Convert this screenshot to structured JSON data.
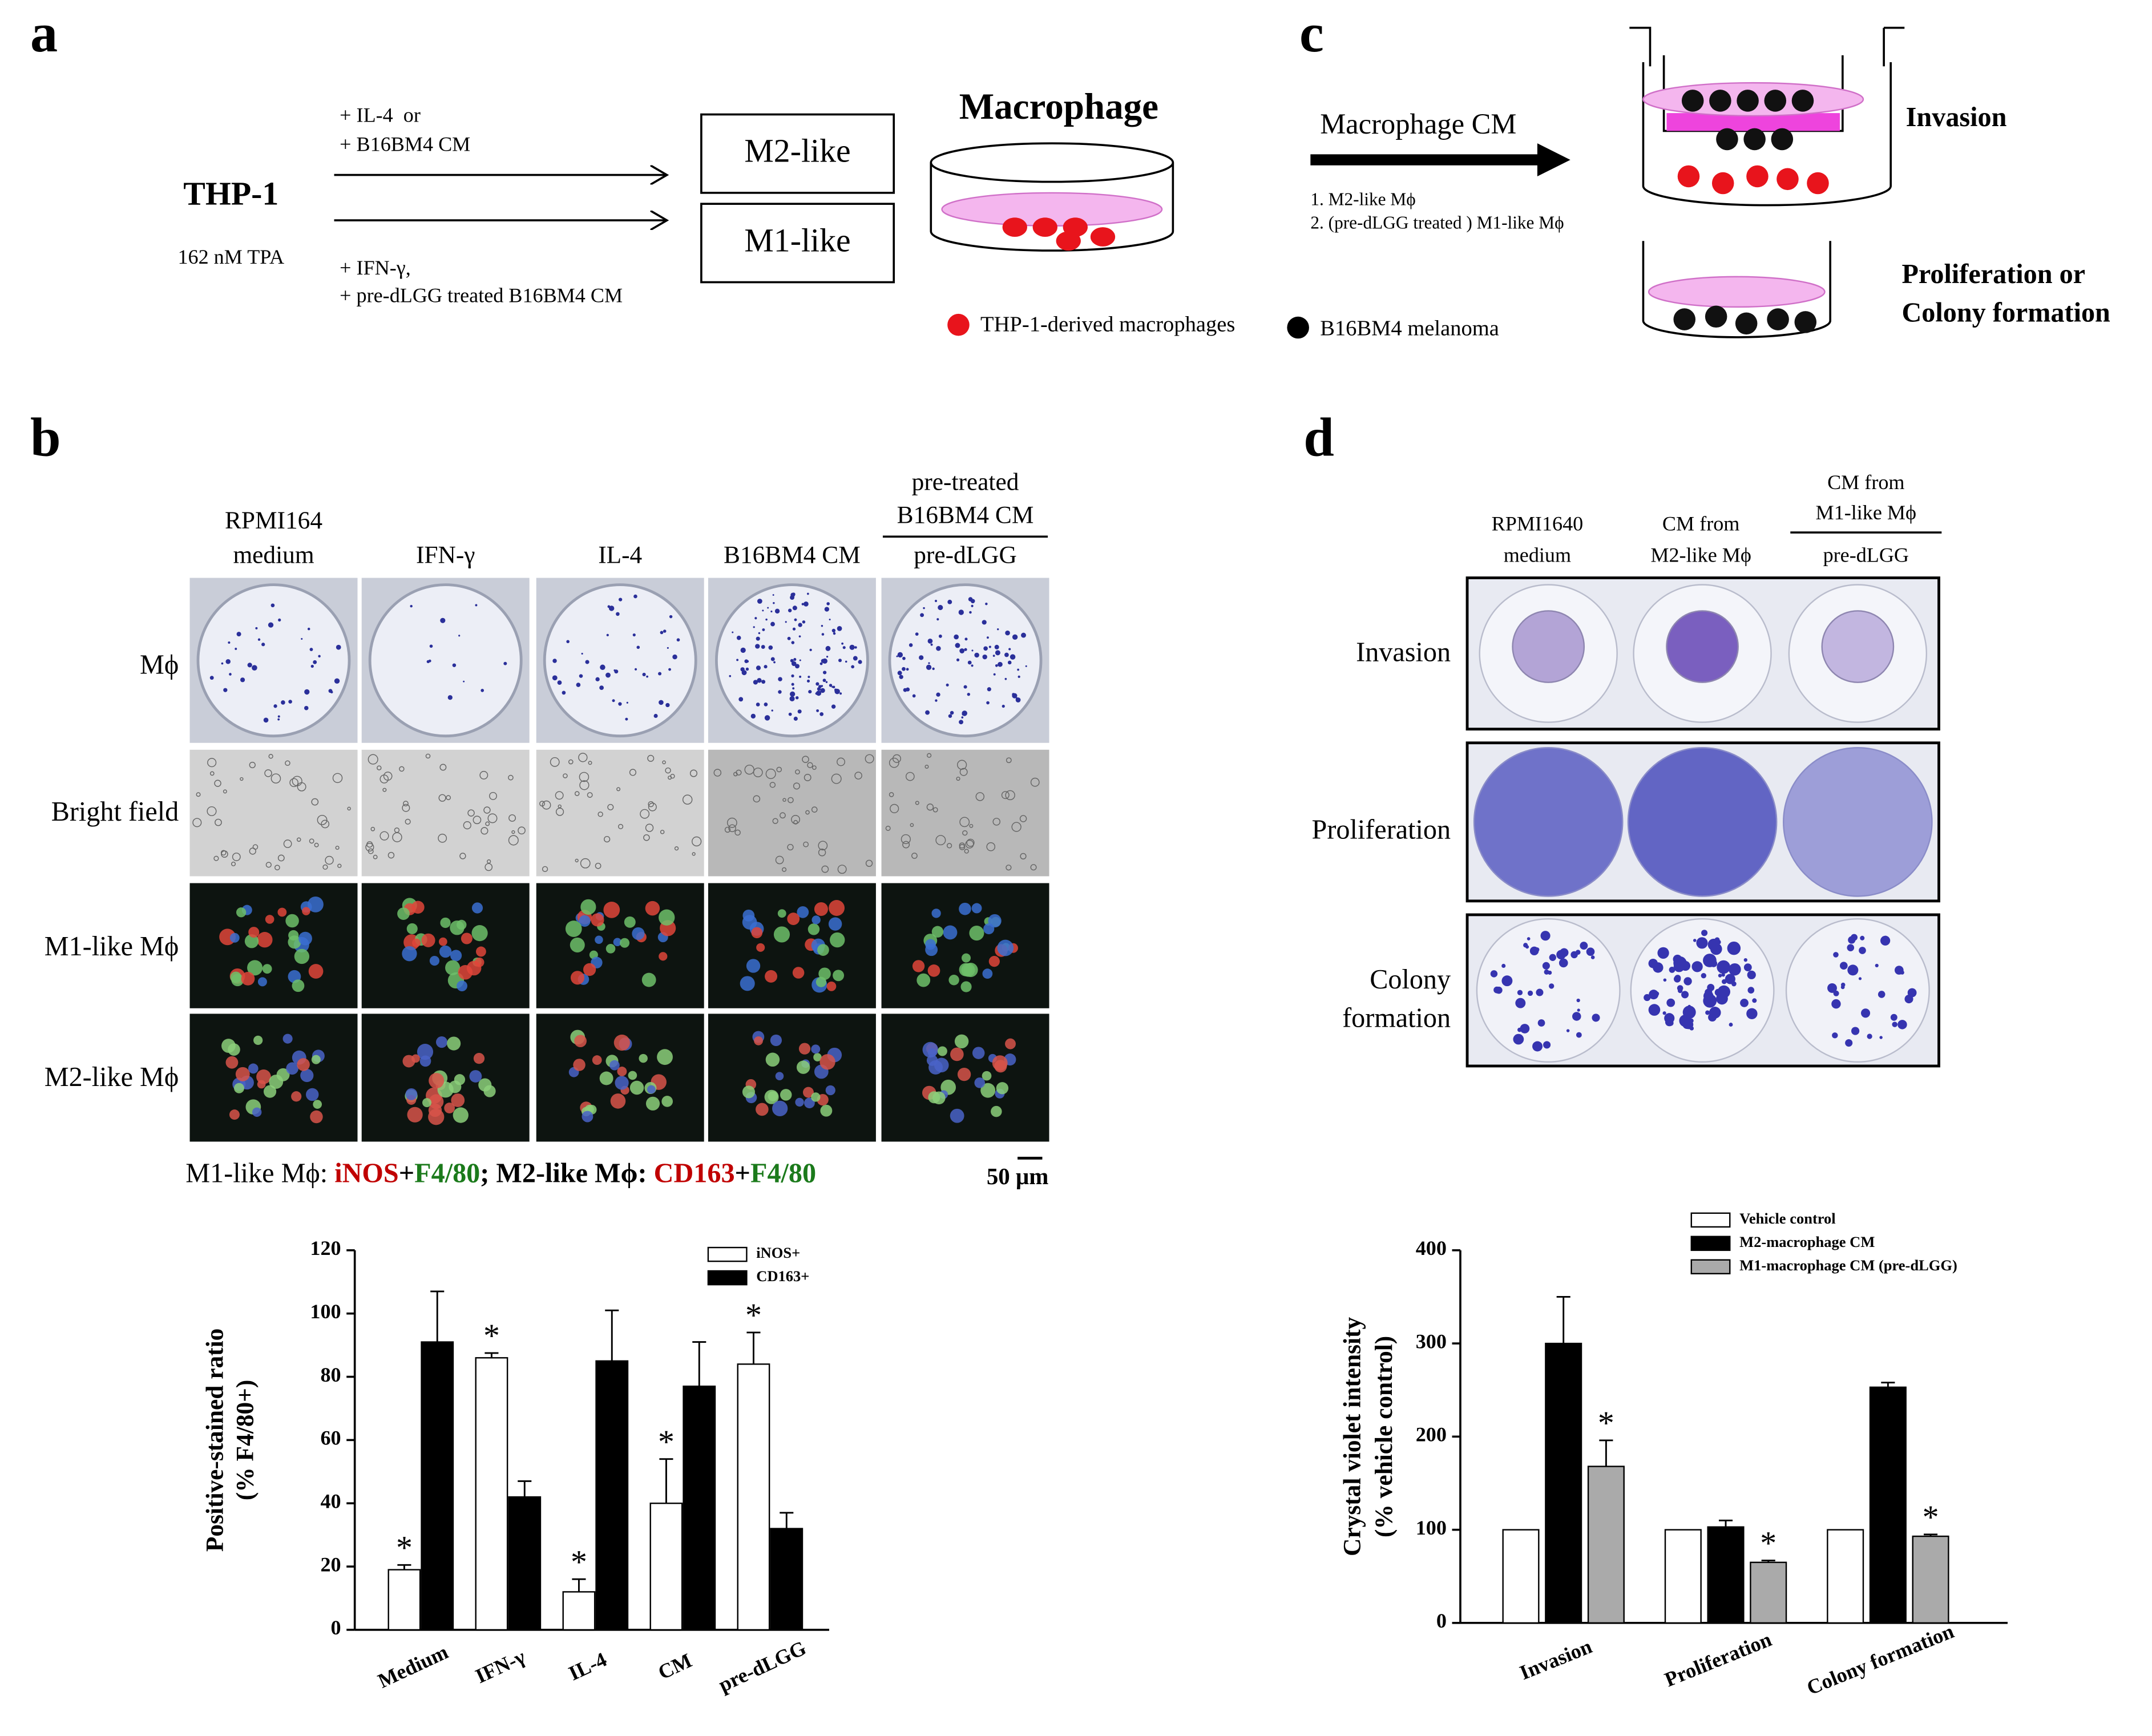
{
  "panel_labels": [
    "a",
    "b",
    "c",
    "d"
  ],
  "panel_a": {
    "cell": "THP-1",
    "treatment": "162 nM TPA",
    "m2_conditions": [
      "+ IL-4  or",
      "+ B16BM4 CM"
    ],
    "m1_conditions": [
      "+ IFN-γ,",
      "+ pre-dLGG treated B16BM4 CM"
    ],
    "m2_box": "M2-like",
    "m1_box": "M1-like",
    "dish_title": "Macrophage",
    "legend": [
      "THP-1-derived macrophages",
      "B16BM4 melanoma"
    ]
  },
  "panel_c": {
    "arrow_label": "Macrophage CM",
    "sources": [
      "1. M2-like Mϕ",
      "2. (pre-dLGG treated ) M1-like Mϕ"
    ],
    "assays": [
      "Invasion",
      "Proliferation or",
      "Colony formation"
    ]
  },
  "panel_b": {
    "column_headers": [
      [
        "RPMI164",
        "medium"
      ],
      [
        "IFN-γ"
      ],
      [
        "IL-4"
      ],
      [
        "B16BM4 CM"
      ],
      [
        "pre-treated",
        "B16BM4 CM",
        "pre-dLGG"
      ]
    ],
    "row_labels": [
      "Mϕ",
      "Bright field",
      "M1-like Mϕ",
      "M2-like Mϕ"
    ],
    "stain_legend": [
      "M1-like Mϕ: ",
      "iNOS",
      "+",
      "F4/80",
      "; M2-like Mϕ: ",
      "CD163",
      "+",
      "F4/80"
    ],
    "scale_bar": "50 μm"
  },
  "panel_d": {
    "column_headers": [
      [
        "RPMI1640",
        "medium"
      ],
      [
        "CM from",
        "M2-like Mϕ"
      ],
      [
        "CM from",
        "M1-like Mϕ",
        "pre-dLGG"
      ]
    ],
    "row_labels": [
      [
        "Invasion"
      ],
      [
        "Proliferation"
      ],
      [
        "Colony",
        "formation"
      ]
    ]
  },
  "chart_data": [
    {
      "type": "bar",
      "ylabel": [
        "Positive-stained ratio",
        "(% F4/80+)"
      ],
      "categories": [
        "Medium",
        "IFN-γ",
        "IL-4",
        "CM",
        "pre-dLGG"
      ],
      "series": [
        {
          "name": "iNOS+",
          "color": "#ffffff",
          "values": [
            19,
            86,
            12,
            40,
            84
          ],
          "errors": [
            1.5,
            1.5,
            4,
            14,
            10
          ],
          "significance": [
            "*",
            "*",
            "*",
            "*",
            "*"
          ]
        },
        {
          "name": "CD163+",
          "color": "#000000",
          "values": [
            91,
            42,
            85,
            77,
            32
          ],
          "errors": [
            16,
            5,
            16,
            14,
            5
          ]
        }
      ],
      "ylim": [
        0,
        120
      ],
      "yticks": [
        0,
        20,
        40,
        60,
        80,
        100,
        120
      ],
      "grid": false
    },
    {
      "type": "bar",
      "ylabel": [
        "Crystal violet intensity",
        "(% vehicle control)"
      ],
      "categories": [
        "Invasion",
        "Proliferation",
        "Colony formation"
      ],
      "series": [
        {
          "name": "Vehicle control",
          "color": "#ffffff",
          "values": [
            100,
            100,
            100
          ]
        },
        {
          "name": "M2-macrophage CM",
          "color": "#000000",
          "values": [
            300,
            103,
            253
          ],
          "errors": [
            50,
            7,
            5
          ]
        },
        {
          "name": "M1-macrophage CM (pre-dLGG)",
          "color": "#aaaaaa",
          "values": [
            168,
            65,
            93
          ],
          "errors": [
            28,
            2,
            2
          ],
          "significance": [
            "*",
            "*",
            "*"
          ]
        }
      ],
      "ylim": [
        0,
        400
      ],
      "yticks": [
        0,
        100,
        200,
        300,
        400
      ],
      "grid": false
    }
  ]
}
